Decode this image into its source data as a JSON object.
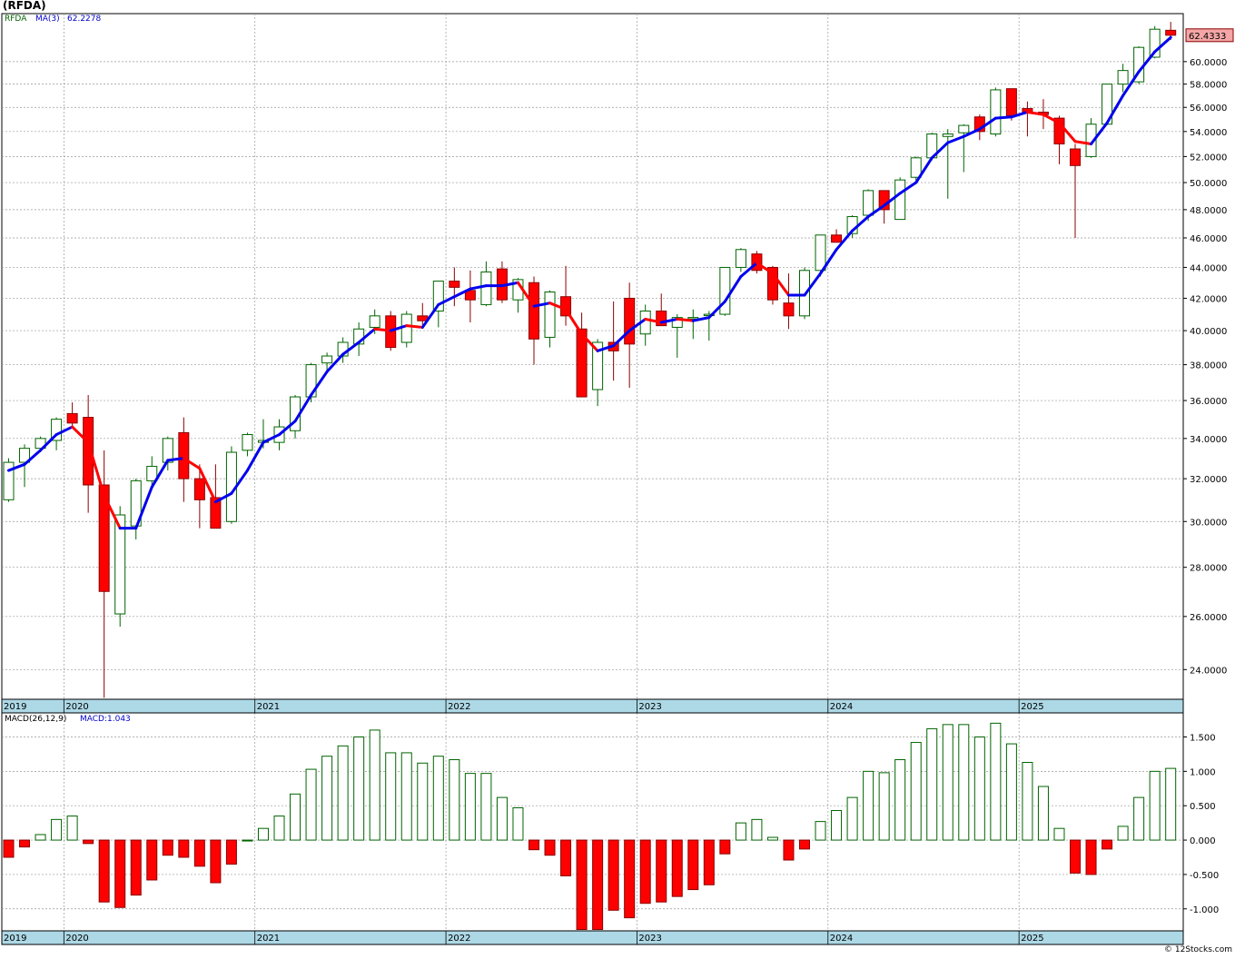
{
  "header": {
    "symbol_title": "(RFDA)",
    "ticker": "RFDA",
    "ma_label": "MA(3)",
    "ma_value": "62.2278",
    "last_price_tag": "62.4333",
    "macd_label": "MACD(26,12,9)",
    "macd_value_label": "MACD:1.043",
    "credit": "© 12Stocks.com"
  },
  "colors": {
    "up": "#006400",
    "down": "#ff0000",
    "ma_up": "#0000ee",
    "ma_down": "#ff0000",
    "axis_band": "#add8e6",
    "grid": "#999999",
    "price_tag": "#f4a6a6"
  },
  "chart_data": [
    {
      "type": "candlestick",
      "title": "(RFDA)",
      "period": "monthly",
      "scale": "log",
      "ylim": [
        22.95,
        64.5
      ],
      "y_ticks": [
        "24.0000",
        "26.0000",
        "28.0000",
        "30.0000",
        "32.0000",
        "34.0000",
        "36.0000",
        "38.0000",
        "40.0000",
        "42.0000",
        "44.0000",
        "46.0000",
        "48.0000",
        "50.0000",
        "52.0000",
        "54.0000",
        "56.0000",
        "58.0000",
        "60.0000"
      ],
      "x_year_labels": [
        "2019",
        "2020",
        "2021",
        "2022",
        "2023",
        "2024",
        "2025"
      ],
      "grid": true,
      "ohlc_columns": [
        "open",
        "high",
        "low",
        "close"
      ],
      "ohlc": [
        [
          31.0,
          33.0,
          30.9,
          32.8
        ],
        [
          32.8,
          33.7,
          31.6,
          33.5
        ],
        [
          33.5,
          34.1,
          33.3,
          34.0
        ],
        [
          33.9,
          35.1,
          33.4,
          35.0
        ],
        [
          35.3,
          35.9,
          34.6,
          34.8
        ],
        [
          35.1,
          36.3,
          30.4,
          31.7
        ],
        [
          31.7,
          33.4,
          23.0,
          27.0
        ],
        [
          26.1,
          30.7,
          25.6,
          30.3
        ],
        [
          29.8,
          32.0,
          29.2,
          31.9
        ],
        [
          31.9,
          33.1,
          31.6,
          32.6
        ],
        [
          32.8,
          34.1,
          32.4,
          34.0
        ],
        [
          34.3,
          35.1,
          30.9,
          32.0
        ],
        [
          32.0,
          32.7,
          29.7,
          31.0
        ],
        [
          31.1,
          32.7,
          29.8,
          29.7
        ],
        [
          30.0,
          33.6,
          29.9,
          33.3
        ],
        [
          33.4,
          34.3,
          33.1,
          34.2
        ],
        [
          33.8,
          35.0,
          33.5,
          33.9
        ],
        [
          33.8,
          35.0,
          33.4,
          34.6
        ],
        [
          34.4,
          36.3,
          34.0,
          36.2
        ],
        [
          36.2,
          38.1,
          35.9,
          38.0
        ],
        [
          38.1,
          38.7,
          37.6,
          38.5
        ],
        [
          38.5,
          39.6,
          38.1,
          39.3
        ],
        [
          39.2,
          40.5,
          38.5,
          40.1
        ],
        [
          40.2,
          41.3,
          39.8,
          40.9
        ],
        [
          40.9,
          41.2,
          38.8,
          39.0
        ],
        [
          39.3,
          41.2,
          39.0,
          41.0
        ],
        [
          40.9,
          41.7,
          40.3,
          40.6
        ],
        [
          41.2,
          43.1,
          40.2,
          43.1
        ],
        [
          43.1,
          44.0,
          41.5,
          42.7
        ],
        [
          42.5,
          43.8,
          40.5,
          41.9
        ],
        [
          41.6,
          44.4,
          41.5,
          43.7
        ],
        [
          43.9,
          44.4,
          41.7,
          41.9
        ],
        [
          41.9,
          43.3,
          41.1,
          43.2
        ],
        [
          43.0,
          43.4,
          38.0,
          39.5
        ],
        [
          39.6,
          42.5,
          39.0,
          42.4
        ],
        [
          42.1,
          44.1,
          40.3,
          40.9
        ],
        [
          40.1,
          41.1,
          36.4,
          36.2
        ],
        [
          36.6,
          39.5,
          35.7,
          39.3
        ],
        [
          39.3,
          41.8,
          37.1,
          38.8
        ],
        [
          42.0,
          43.0,
          36.7,
          39.2
        ],
        [
          39.8,
          41.6,
          39.1,
          41.2
        ],
        [
          41.2,
          42.3,
          40.3,
          40.3
        ],
        [
          40.2,
          41.0,
          38.4,
          40.8
        ],
        [
          40.8,
          41.3,
          39.5,
          40.8
        ],
        [
          41.0,
          41.2,
          39.4,
          41.0
        ],
        [
          41.0,
          44.0,
          40.9,
          44.0
        ],
        [
          44.0,
          45.3,
          43.7,
          45.2
        ],
        [
          44.9,
          45.1,
          43.6,
          43.8
        ],
        [
          44.0,
          44.1,
          41.6,
          41.9
        ],
        [
          41.7,
          43.6,
          40.1,
          40.9
        ],
        [
          40.9,
          44.0,
          40.7,
          43.8
        ],
        [
          43.8,
          46.2,
          43.4,
          46.2
        ],
        [
          46.2,
          46.6,
          45.7,
          45.7
        ],
        [
          46.3,
          47.6,
          46.0,
          47.5
        ],
        [
          47.6,
          49.5,
          47.2,
          49.4
        ],
        [
          49.4,
          49.4,
          47.0,
          48.0
        ],
        [
          47.3,
          50.4,
          47.3,
          50.2
        ],
        [
          50.4,
          52.0,
          50.1,
          51.9
        ],
        [
          51.9,
          53.9,
          51.7,
          53.8
        ],
        [
          53.6,
          54.2,
          48.8,
          53.8
        ],
        [
          53.9,
          54.6,
          50.8,
          54.5
        ],
        [
          55.2,
          55.4,
          53.3,
          54.0
        ],
        [
          53.8,
          57.7,
          53.6,
          57.5
        ],
        [
          57.6,
          57.6,
          54.9,
          55.3
        ],
        [
          55.9,
          56.5,
          53.6,
          55.6
        ],
        [
          55.6,
          56.7,
          54.2,
          55.4
        ],
        [
          55.1,
          55.3,
          51.4,
          53.0
        ],
        [
          52.6,
          53.0,
          46.0,
          51.3
        ],
        [
          52.0,
          55.1,
          51.9,
          54.6
        ],
        [
          54.6,
          58.0,
          54.5,
          58.0
        ],
        [
          58.0,
          59.8,
          57.3,
          59.2
        ],
        [
          58.2,
          61.4,
          58.0,
          61.3
        ],
        [
          60.4,
          63.3,
          60.3,
          63.0
        ],
        [
          62.9,
          63.7,
          62.0,
          62.4333
        ]
      ],
      "ma3": [
        32.4,
        32.7,
        33.4,
        34.2,
        34.6,
        33.8,
        31.2,
        29.7,
        29.7,
        31.6,
        32.9,
        33.0,
        32.5,
        30.9,
        31.3,
        32.4,
        33.8,
        34.2,
        34.9,
        36.3,
        37.6,
        38.6,
        39.3,
        40.1,
        40.0,
        40.3,
        40.2,
        41.6,
        42.1,
        42.6,
        42.8,
        42.8,
        43.0,
        41.5,
        41.7,
        41.3,
        39.8,
        38.8,
        39.1,
        40.0,
        40.7,
        40.5,
        40.7,
        40.6,
        40.8,
        41.8,
        43.4,
        44.3,
        43.6,
        42.2,
        42.2,
        43.6,
        45.2,
        46.5,
        47.5,
        48.3,
        49.2,
        50.0,
        51.9,
        53.1,
        53.6,
        54.2,
        55.1,
        55.2,
        55.6,
        55.4,
        54.7,
        53.2,
        53.0,
        54.7,
        57.0,
        59.1,
        60.9,
        62.2278
      ]
    },
    {
      "type": "bar",
      "title": "MACD(26,12,9)",
      "ylim": [
        -1.32,
        1.85
      ],
      "y_ticks": [
        "-1.000",
        "-0.500",
        "0.000",
        "0.500",
        "1.000",
        "1.500"
      ],
      "x_year_labels": [
        "2019",
        "2020",
        "2021",
        "2022",
        "2023",
        "2024",
        "2025"
      ],
      "values": [
        -0.25,
        -0.1,
        0.08,
        0.3,
        0.35,
        -0.05,
        -0.9,
        -0.98,
        -0.8,
        -0.58,
        -0.22,
        -0.25,
        -0.38,
        -0.62,
        -0.35,
        0.0,
        0.17,
        0.35,
        0.67,
        1.03,
        1.22,
        1.37,
        1.5,
        1.6,
        1.27,
        1.27,
        1.12,
        1.22,
        1.17,
        0.97,
        0.97,
        0.62,
        0.47,
        -0.14,
        -0.22,
        -0.52,
        -1.3,
        -1.3,
        -1.02,
        -1.13,
        -0.92,
        -0.9,
        -0.82,
        -0.72,
        -0.65,
        -0.2,
        0.25,
        0.3,
        0.04,
        -0.29,
        -0.13,
        0.27,
        0.43,
        0.62,
        1.0,
        0.98,
        1.17,
        1.42,
        1.62,
        1.68,
        1.68,
        1.5,
        1.7,
        1.4,
        1.13,
        0.78,
        0.17,
        -0.48,
        -0.5,
        -0.13,
        0.2,
        0.62,
        1.0,
        1.043
      ]
    }
  ]
}
